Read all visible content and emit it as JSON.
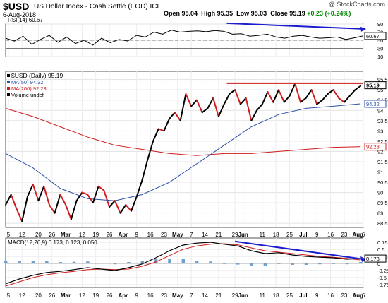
{
  "header": {
    "symbol": "$USD",
    "name": "US Dollar Index - Cash Settle (EOD)",
    "exchange": "ICE",
    "date": "6-Aug-2018",
    "credit": "@ StockCharts.com",
    "open_label": "Open",
    "open": "95.04",
    "high_label": "High",
    "high": "95.35",
    "low_label": "Low",
    "low": "95.03",
    "close_label": "Close",
    "close": "95.19",
    "change": "+0.23 (+0.24%)"
  },
  "chart_data": [
    {
      "type": "line",
      "panel": "RSI",
      "legend": [
        "RSI(14) 60.67"
      ],
      "yticks": [
        90,
        70,
        50,
        30,
        10
      ],
      "ylim": [
        10,
        90
      ],
      "last_value_label": "60.67",
      "reference_lines": [
        70,
        50,
        30
      ],
      "x_index": [
        0,
        5,
        10,
        15,
        20,
        25,
        30,
        35,
        40,
        45,
        50,
        55,
        60,
        65,
        70,
        75,
        80,
        85,
        90,
        95,
        100,
        105,
        110,
        115,
        120,
        125,
        130,
        135,
        140,
        145,
        150,
        155,
        160,
        165,
        170,
        175,
        180,
        185,
        190,
        195,
        200,
        205
      ],
      "values": [
        55,
        48,
        60,
        40,
        52,
        62,
        45,
        58,
        42,
        50,
        38,
        55,
        44,
        52,
        48,
        62,
        58,
        70,
        65,
        75,
        70,
        72,
        73,
        71,
        74,
        72,
        65,
        66,
        60,
        62,
        65,
        58,
        55,
        60,
        62,
        58,
        55,
        56,
        58,
        52,
        56,
        61
      ],
      "trendline": {
        "from_index": 129,
        "from": 92,
        "to_index": 206,
        "to": 78,
        "color": "#1c1ccf"
      }
    },
    {
      "type": "line",
      "panel": "Price",
      "legend": [
        "$USD (Daily) 95.19",
        "MA(50) 94.32",
        "MA(200) 92.23",
        "Volume undef"
      ],
      "legend_colors": [
        "#000000",
        "#2a4fa8",
        "#d01c1c",
        "#000000"
      ],
      "yticks": [
        95.5,
        95.0,
        94.5,
        94.0,
        93.5,
        93.0,
        92.5,
        92.0,
        91.5,
        91.0,
        90.5,
        90.0,
        89.5,
        89.0,
        88.5
      ],
      "ylim": [
        88.3,
        95.9
      ],
      "x_labels": [
        "5",
        "12",
        "20",
        "26",
        "Mar",
        "12",
        "19",
        "26",
        "Apr",
        "9",
        "16",
        "23",
        "May",
        "7",
        "14",
        "21",
        "29",
        "Jun",
        "11",
        "18",
        "25",
        "Jul",
        "9",
        "16",
        "23",
        "Aug",
        "6"
      ],
      "x_label_index": [
        1,
        6,
        12,
        17,
        22,
        28,
        33,
        38,
        43,
        48,
        53,
        58,
        63,
        68,
        73,
        78,
        84,
        87,
        94,
        99,
        104,
        109,
        114,
        119,
        124,
        129,
        131
      ],
      "series": [
        {
          "name": "$USD (Daily)",
          "color": "#000000",
          "x_index": [
            0,
            2,
            4,
            6,
            8,
            10,
            12,
            14,
            16,
            18,
            20,
            22,
            24,
            26,
            28,
            30,
            32,
            34,
            36,
            38,
            40,
            42,
            44,
            46,
            48,
            50,
            52,
            54,
            56,
            58,
            60,
            62,
            64,
            66,
            68,
            70,
            72,
            74,
            76,
            78,
            80,
            82,
            84,
            86,
            88,
            90,
            92,
            94,
            96,
            98,
            100,
            102,
            104,
            106,
            108,
            110,
            112,
            114,
            116,
            118,
            120,
            122,
            124,
            126,
            128,
            130
          ],
          "values": [
            89.4,
            89.9,
            89.2,
            88.6,
            89.8,
            90.4,
            89.6,
            90.3,
            89.4,
            89.0,
            89.9,
            89.4,
            88.7,
            89.6,
            90.0,
            89.9,
            89.5,
            90.3,
            90.1,
            89.3,
            89.6,
            89.0,
            89.4,
            89.1,
            89.8,
            90.6,
            91.6,
            92.5,
            93.1,
            93.0,
            93.6,
            93.9,
            93.5,
            94.8,
            94.2,
            94.5,
            93.9,
            94.1,
            94.6,
            93.7,
            94.3,
            94.8,
            95.0,
            94.3,
            94.6,
            93.5,
            94.0,
            94.3,
            94.9,
            94.4,
            95.0,
            94.4,
            94.7,
            95.3,
            94.4,
            94.6,
            95.0,
            94.3,
            94.5,
            94.8,
            95.0,
            94.6,
            94.4,
            94.7,
            95.0,
            95.19
          ],
          "down_segments_color": "#d01c1c"
        },
        {
          "name": "MA(50)",
          "color": "#2a4fa8",
          "x_index": [
            0,
            10,
            20,
            30,
            40,
            50,
            60,
            70,
            80,
            90,
            100,
            110,
            120,
            130
          ],
          "values": [
            91.9,
            91.2,
            90.2,
            89.7,
            89.6,
            89.9,
            90.5,
            91.4,
            92.3,
            93.2,
            93.8,
            94.1,
            94.2,
            94.32
          ]
        },
        {
          "name": "MA(200)",
          "color": "#d01c1c",
          "x_index": [
            0,
            10,
            20,
            30,
            40,
            50,
            60,
            70,
            80,
            90,
            100,
            110,
            120,
            130
          ],
          "values": [
            94.1,
            93.7,
            93.2,
            92.7,
            92.3,
            92.1,
            91.9,
            91.8,
            91.9,
            91.9,
            92.0,
            92.1,
            92.2,
            92.23
          ]
        }
      ],
      "last_value_labels": [
        {
          "value": "95.19",
          "color": "#000000"
        },
        {
          "value": "94.32",
          "color": "#2a4fa8"
        },
        {
          "value": "92.23",
          "color": "#d01c1c"
        }
      ],
      "resistance_line": {
        "from_index": 81,
        "to_index": 131,
        "value": 95.32,
        "color": "#d01c1c"
      }
    },
    {
      "type": "area",
      "panel": "MACD",
      "legend": [
        "MACD(12,26,9) 0.173, 0.123, 0.050"
      ],
      "yticks": [
        0.75,
        0.5,
        0.25,
        0.0,
        -0.25,
        -0.5,
        -0.75
      ],
      "ylim": [
        -0.85,
        0.9
      ],
      "last_value_label": "0.173",
      "x_index": [
        0,
        5,
        10,
        15,
        20,
        25,
        30,
        35,
        40,
        45,
        50,
        55,
        60,
        65,
        70,
        75,
        80,
        85,
        90,
        95,
        100,
        105,
        110,
        115,
        120,
        125,
        130
      ],
      "macd": [
        -0.72,
        -0.55,
        -0.42,
        -0.32,
        -0.28,
        -0.22,
        -0.15,
        -0.2,
        -0.25,
        -0.15,
        -0.02,
        0.2,
        0.45,
        0.65,
        0.72,
        0.75,
        0.68,
        0.62,
        0.45,
        0.35,
        0.38,
        0.3,
        0.25,
        0.22,
        0.2,
        0.15,
        0.173
      ],
      "signal": [
        -0.8,
        -0.65,
        -0.5,
        -0.4,
        -0.33,
        -0.28,
        -0.22,
        -0.2,
        -0.22,
        -0.2,
        -0.1,
        0.05,
        0.28,
        0.5,
        0.62,
        0.68,
        0.7,
        0.66,
        0.55,
        0.45,
        0.4,
        0.35,
        0.3,
        0.25,
        0.22,
        0.18,
        0.123
      ],
      "histogram": [
        0.08,
        0.1,
        0.08,
        0.08,
        0.05,
        0.06,
        0.07,
        0.0,
        -0.03,
        0.05,
        0.08,
        0.15,
        0.17,
        0.15,
        0.1,
        0.07,
        -0.02,
        -0.04,
        -0.1,
        -0.1,
        -0.02,
        -0.05,
        -0.05,
        -0.03,
        -0.02,
        -0.03,
        0.05
      ],
      "trendline": {
        "from_index": 84,
        "from": 0.78,
        "to_index": 131,
        "to": 0.15,
        "color": "#1c1ccf"
      }
    }
  ]
}
